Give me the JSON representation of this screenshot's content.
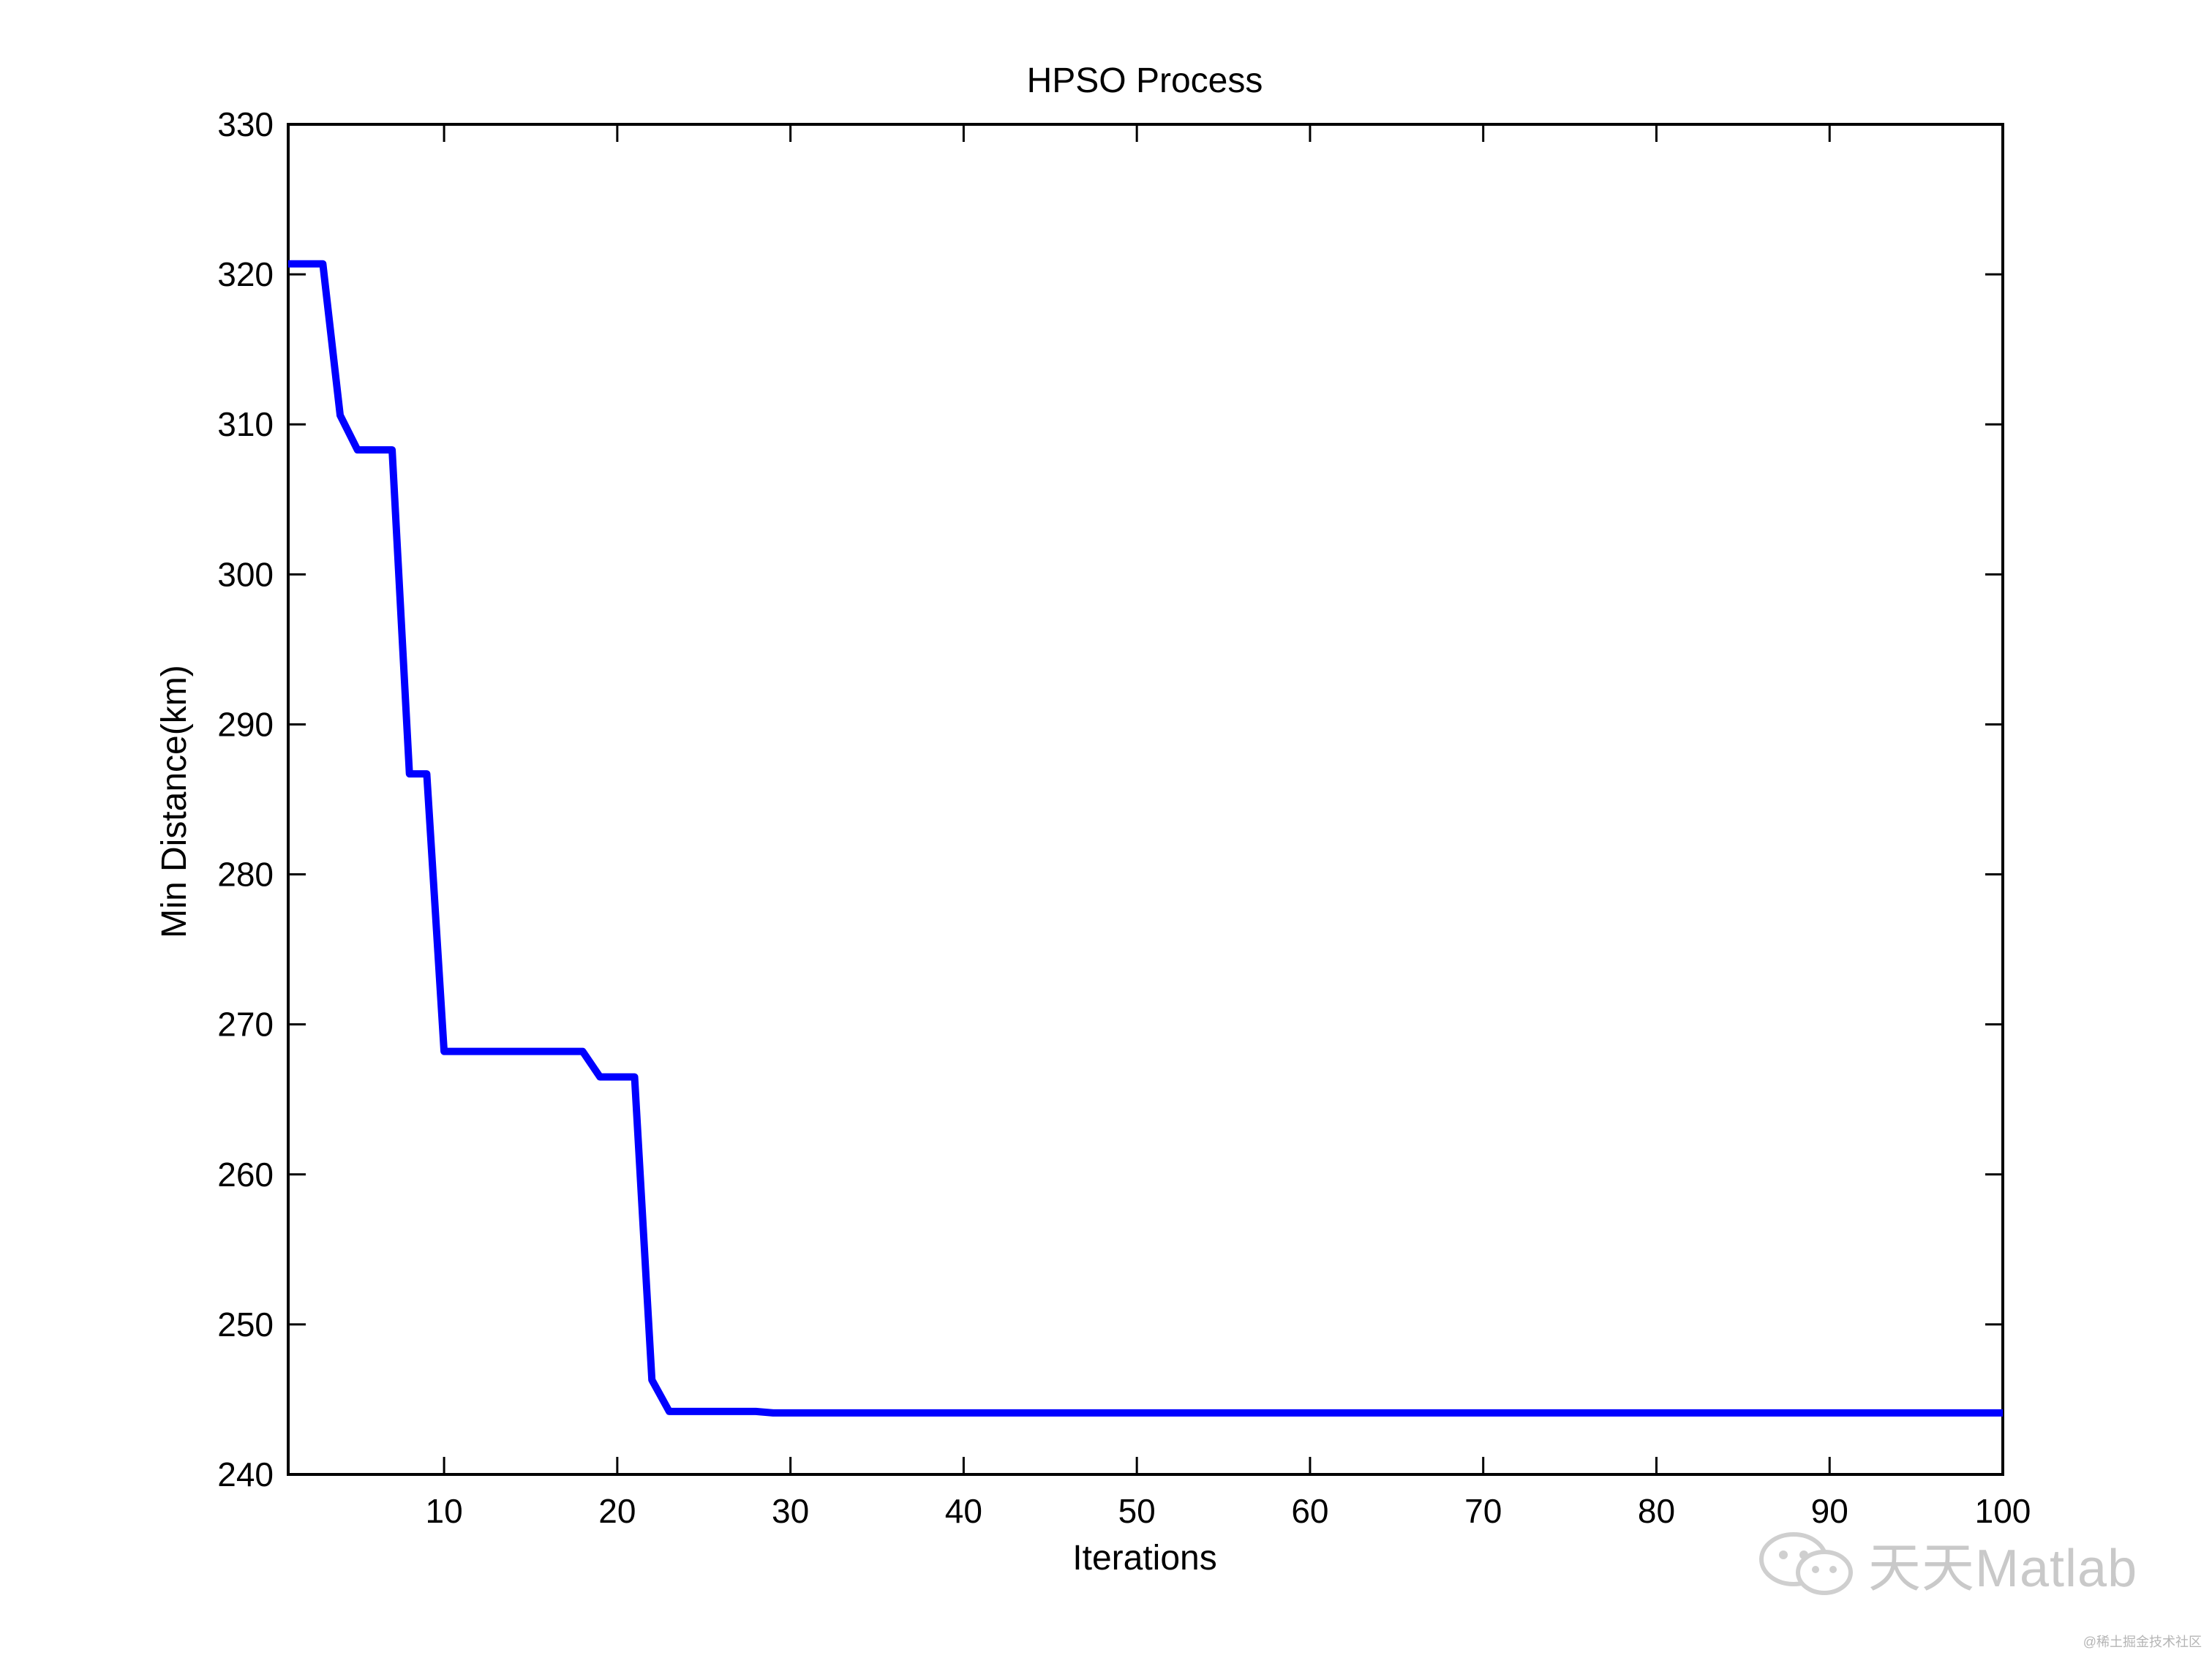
{
  "chart_data": {
    "type": "line",
    "title": "HPSO Process",
    "xlabel": "Iterations",
    "ylabel": "Min Distance(km)",
    "xlim": [
      1,
      100
    ],
    "ylim": [
      240,
      330
    ],
    "xticks": [
      10,
      20,
      30,
      40,
      50,
      60,
      70,
      80,
      90,
      100
    ],
    "yticks": [
      240,
      250,
      260,
      270,
      280,
      290,
      300,
      310,
      320,
      330
    ],
    "grid": false,
    "line_color": "#0000ff",
    "series": [
      {
        "x": [
          1,
          3,
          4,
          5,
          7,
          8,
          9,
          10,
          18,
          19,
          21,
          22,
          23,
          28,
          29,
          100
        ],
        "values": [
          320.7,
          320.7,
          310.6,
          308.3,
          308.3,
          286.7,
          286.7,
          268.2,
          268.2,
          266.5,
          266.5,
          246.3,
          244.2,
          244.2,
          244.1,
          244.1
        ]
      }
    ]
  },
  "watermark": {
    "text": "天天Matlab",
    "credit": "@稀土掘金技术社区"
  }
}
